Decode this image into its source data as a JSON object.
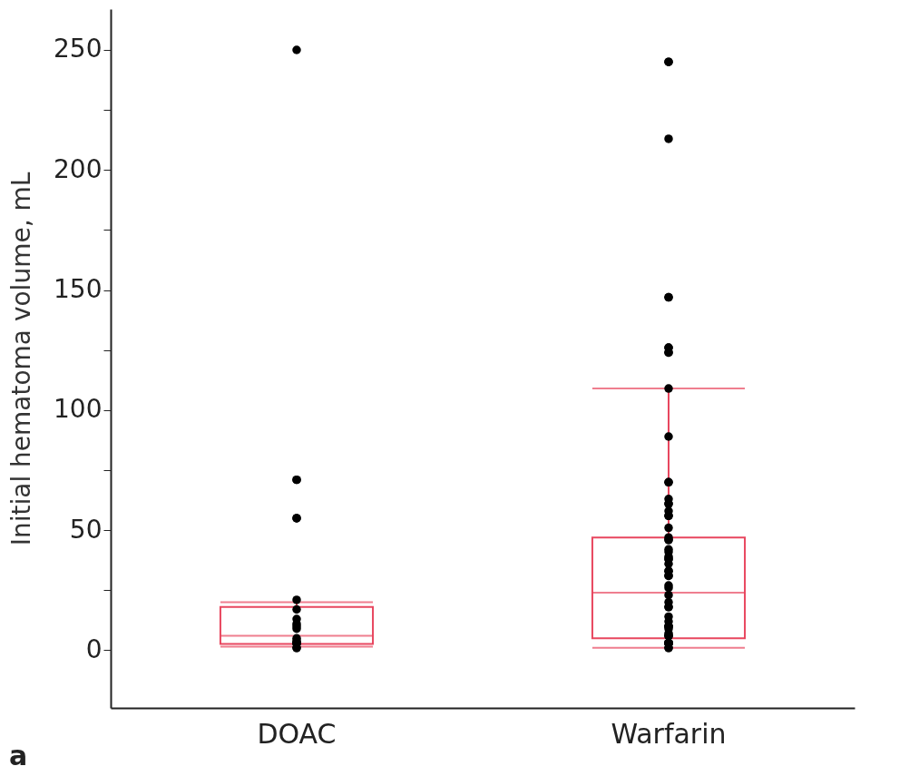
{
  "chart_data": {
    "type": "box",
    "ylabel": "Initial hematoma volume, mL",
    "categories": [
      "DOAC",
      "Warfarin"
    ],
    "ylim": [
      -24,
      267
    ],
    "yticks": [
      0,
      {
        "value": 25,
        "label": null
      },
      50,
      {
        "value": 75,
        "label": null
      },
      100,
      {
        "value": 125,
        "label": null
      },
      150,
      {
        "value": 175,
        "label": null
      },
      200,
      {
        "value": 225,
        "label": null
      },
      250
    ],
    "grid": false,
    "annotations": [
      "a"
    ],
    "series": [
      {
        "color": "#e8475f",
        "boxes": [
          {
            "low": 1.5,
            "q1": 2.6,
            "median": 6,
            "q3": 18,
            "high": 20
          },
          {
            "low": 1,
            "q1": 5,
            "median": 24,
            "q3": 47,
            "high": 109
          }
        ]
      },
      {
        "type": "scatter",
        "color": "#000000",
        "marker": "circle",
        "x": [
          "DOAC",
          "DOAC",
          "DOAC",
          "DOAC",
          "DOAC",
          "DOAC",
          "DOAC",
          "DOAC",
          "DOAC",
          "DOAC",
          "DOAC",
          "DOAC",
          "DOAC",
          "DOAC",
          "DOAC",
          "DOAC",
          "DOAC",
          "DOAC",
          "DOAC",
          "DOAC",
          "Warfarin",
          "Warfarin",
          "Warfarin",
          "Warfarin",
          "Warfarin",
          "Warfarin",
          "Warfarin",
          "Warfarin",
          "Warfarin",
          "Warfarin",
          "Warfarin",
          "Warfarin",
          "Warfarin",
          "Warfarin",
          "Warfarin",
          "Warfarin",
          "Warfarin",
          "Warfarin",
          "Warfarin",
          "Warfarin",
          "Warfarin",
          "Warfarin",
          "Warfarin",
          "Warfarin",
          "Warfarin",
          "Warfarin",
          "Warfarin",
          "Warfarin",
          "Warfarin",
          "Warfarin",
          "Warfarin",
          "Warfarin",
          "Warfarin",
          "Warfarin",
          "Warfarin",
          "Warfarin",
          "Warfarin",
          "Warfarin",
          "Warfarin",
          "Warfarin",
          "Warfarin",
          "Warfarin",
          "Warfarin",
          "Warfarin",
          "Warfarin",
          "Warfarin",
          "Warfarin",
          "Warfarin",
          "Warfarin",
          "Warfarin",
          "Warfarin",
          "Warfarin",
          "Warfarin",
          "Warfarin",
          "Warfarin",
          "Warfarin",
          "Warfarin",
          "Warfarin"
        ],
        "values": [
          250,
          71,
          71,
          55,
          55,
          21,
          17,
          13,
          11,
          10,
          9,
          5,
          4,
          3,
          3,
          3,
          3,
          3,
          1,
          1,
          245,
          245,
          213,
          147,
          147,
          126,
          126,
          124,
          124,
          109,
          89,
          70,
          70,
          63,
          61,
          61,
          58,
          56,
          56,
          51,
          47,
          46,
          46,
          42,
          41,
          39,
          38,
          38,
          36,
          33,
          33,
          31,
          31,
          27,
          26,
          23,
          20,
          18,
          18,
          14,
          12,
          10,
          10,
          10,
          9,
          7,
          6,
          6,
          6,
          3,
          3,
          3,
          3,
          3,
          3,
          3,
          1,
          1
        ]
      }
    ]
  }
}
